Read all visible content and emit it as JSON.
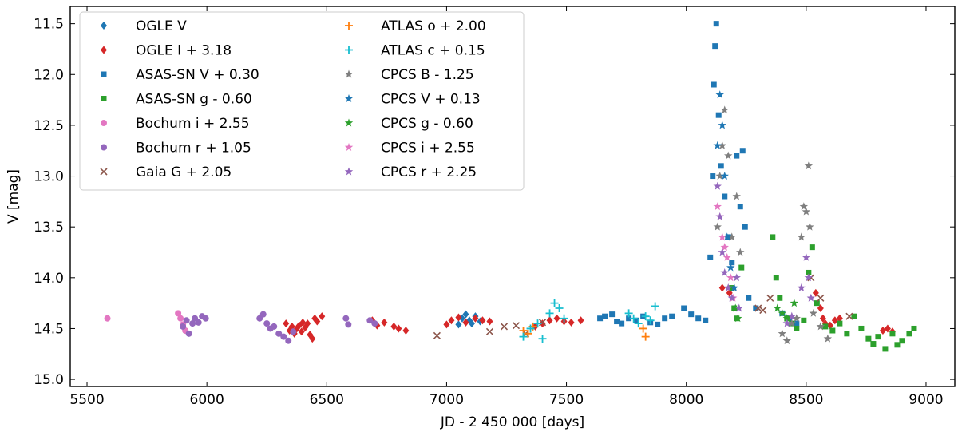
{
  "chart_data": {
    "type": "scatter",
    "xlabel": "JD - 2 450 000 [days]",
    "ylabel": "V [mag]",
    "xlim": [
      5430,
      9120
    ],
    "ylim": [
      15.07,
      11.33
    ],
    "y_inverted": true,
    "xticks": [
      5500,
      6000,
      6500,
      7000,
      7500,
      8000,
      8500,
      9000
    ],
    "yticks": [
      11.5,
      12.0,
      12.5,
      13.0,
      13.5,
      14.0,
      14.5,
      15.0
    ],
    "xtick_labels": [
      "5500",
      "6000",
      "6500",
      "7000",
      "7500",
      "8000",
      "8500",
      "9000"
    ],
    "ytick_labels": [
      "11.5",
      "12.0",
      "12.5",
      "13.0",
      "13.5",
      "14.0",
      "14.5",
      "15.0"
    ],
    "grid": false,
    "legend_position": "top-left",
    "series": [
      {
        "name": "OGLE V",
        "marker": "diamond",
        "color": "#1f77b4",
        "points": [
          [
            7050,
            14.46
          ],
          [
            7065,
            14.4
          ],
          [
            7080,
            14.36
          ],
          [
            7095,
            14.42
          ],
          [
            7105,
            14.45
          ],
          [
            7120,
            14.38
          ],
          [
            7140,
            14.43
          ]
        ]
      },
      {
        "name": "OGLE I + 3.18",
        "marker": "diamond",
        "color": "#d62728",
        "points": [
          [
            6330,
            14.45
          ],
          [
            6345,
            14.52
          ],
          [
            6355,
            14.48
          ],
          [
            6365,
            14.55
          ],
          [
            6375,
            14.5
          ],
          [
            6385,
            14.47
          ],
          [
            6395,
            14.53
          ],
          [
            6400,
            14.44
          ],
          [
            6410,
            14.49
          ],
          [
            6420,
            14.45
          ],
          [
            6430,
            14.56
          ],
          [
            6440,
            14.6
          ],
          [
            6450,
            14.4
          ],
          [
            6460,
            14.43
          ],
          [
            6480,
            14.38
          ],
          [
            6690,
            14.42
          ],
          [
            6710,
            14.47
          ],
          [
            6740,
            14.44
          ],
          [
            6780,
            14.48
          ],
          [
            6800,
            14.5
          ],
          [
            6830,
            14.52
          ],
          [
            7000,
            14.46
          ],
          [
            7020,
            14.42
          ],
          [
            7050,
            14.39
          ],
          [
            7080,
            14.44
          ],
          [
            7120,
            14.4
          ],
          [
            7150,
            14.42
          ],
          [
            7180,
            14.43
          ],
          [
            7370,
            14.48
          ],
          [
            7400,
            14.45
          ],
          [
            7430,
            14.42
          ],
          [
            7460,
            14.4
          ],
          [
            7490,
            14.43
          ],
          [
            7520,
            14.44
          ],
          [
            7560,
            14.42
          ],
          [
            8150,
            14.1
          ],
          [
            8180,
            14.15
          ],
          [
            8540,
            14.15
          ],
          [
            8560,
            14.3
          ],
          [
            8570,
            14.4
          ],
          [
            8580,
            14.45
          ],
          [
            8600,
            14.47
          ],
          [
            8620,
            14.42
          ],
          [
            8640,
            14.4
          ],
          [
            8820,
            14.52
          ],
          [
            8840,
            14.5
          ],
          [
            8860,
            14.53
          ]
        ]
      },
      {
        "name": "ASAS-SN V + 0.30",
        "marker": "square",
        "color": "#1f77b4",
        "points": [
          [
            7640,
            14.4
          ],
          [
            7660,
            14.38
          ],
          [
            7690,
            14.36
          ],
          [
            7710,
            14.43
          ],
          [
            7730,
            14.45
          ],
          [
            7760,
            14.4
          ],
          [
            7790,
            14.42
          ],
          [
            7820,
            14.38
          ],
          [
            7850,
            14.44
          ],
          [
            7880,
            14.46
          ],
          [
            7910,
            14.4
          ],
          [
            7940,
            14.38
          ],
          [
            7990,
            14.3
          ],
          [
            8020,
            14.36
          ],
          [
            8050,
            14.4
          ],
          [
            8080,
            14.42
          ],
          [
            8100,
            13.8
          ],
          [
            8110,
            13.0
          ],
          [
            8115,
            12.1
          ],
          [
            8120,
            11.72
          ],
          [
            8125,
            11.5
          ],
          [
            8135,
            12.4
          ],
          [
            8145,
            12.9
          ],
          [
            8160,
            13.2
          ],
          [
            8175,
            13.6
          ],
          [
            8190,
            13.85
          ],
          [
            8210,
            12.8
          ],
          [
            8225,
            13.3
          ],
          [
            8235,
            12.75
          ],
          [
            8245,
            13.5
          ],
          [
            8260,
            14.2
          ],
          [
            8290,
            14.3
          ],
          [
            8400,
            14.35
          ],
          [
            8430,
            14.4
          ],
          [
            8460,
            14.45
          ]
        ]
      },
      {
        "name": "ASAS-SN g - 0.60",
        "marker": "square",
        "color": "#2ca02c",
        "points": [
          [
            8190,
            14.1
          ],
          [
            8200,
            14.3
          ],
          [
            8210,
            14.4
          ],
          [
            8230,
            13.9
          ],
          [
            8360,
            13.6
          ],
          [
            8375,
            14.0
          ],
          [
            8390,
            14.2
          ],
          [
            8420,
            14.4
          ],
          [
            8440,
            14.45
          ],
          [
            8460,
            14.5
          ],
          [
            8490,
            14.42
          ],
          [
            8510,
            13.95
          ],
          [
            8525,
            13.7
          ],
          [
            8545,
            14.25
          ],
          [
            8580,
            14.48
          ],
          [
            8610,
            14.52
          ],
          [
            8640,
            14.45
          ],
          [
            8670,
            14.55
          ],
          [
            8700,
            14.38
          ],
          [
            8730,
            14.5
          ],
          [
            8760,
            14.6
          ],
          [
            8780,
            14.65
          ],
          [
            8800,
            14.58
          ],
          [
            8830,
            14.7
          ],
          [
            8860,
            14.55
          ],
          [
            8880,
            14.66
          ],
          [
            8900,
            14.62
          ],
          [
            8930,
            14.55
          ],
          [
            8950,
            14.5
          ]
        ]
      },
      {
        "name": "Bochum i + 2.55",
        "marker": "circle",
        "color": "#e377c2",
        "points": [
          [
            5585,
            14.4
          ],
          [
            5880,
            14.35
          ],
          [
            5890,
            14.4
          ],
          [
            5900,
            14.46
          ],
          [
            5910,
            14.52
          ]
        ]
      },
      {
        "name": "Bochum r + 1.05",
        "marker": "circle",
        "color": "#9467bd",
        "points": [
          [
            5900,
            14.48
          ],
          [
            5915,
            14.42
          ],
          [
            5925,
            14.55
          ],
          [
            5940,
            14.45
          ],
          [
            5950,
            14.4
          ],
          [
            5965,
            14.44
          ],
          [
            5980,
            14.38
          ],
          [
            5995,
            14.4
          ],
          [
            6220,
            14.4
          ],
          [
            6235,
            14.36
          ],
          [
            6250,
            14.45
          ],
          [
            6265,
            14.5
          ],
          [
            6280,
            14.48
          ],
          [
            6300,
            14.55
          ],
          [
            6320,
            14.58
          ],
          [
            6340,
            14.62
          ],
          [
            6360,
            14.53
          ],
          [
            6580,
            14.4
          ],
          [
            6590,
            14.46
          ],
          [
            6680,
            14.42
          ],
          [
            6700,
            14.45
          ]
        ]
      },
      {
        "name": "Gaia G + 2.05",
        "marker": "x",
        "color": "#8c564b",
        "points": [
          [
            6960,
            14.57
          ],
          [
            7180,
            14.53
          ],
          [
            7240,
            14.48
          ],
          [
            7290,
            14.47
          ],
          [
            7330,
            14.55
          ],
          [
            7400,
            14.44
          ],
          [
            8300,
            14.3
          ],
          [
            8320,
            14.32
          ],
          [
            8350,
            14.2
          ],
          [
            8520,
            14.0
          ],
          [
            8560,
            14.2
          ],
          [
            8680,
            14.38
          ]
        ]
      },
      {
        "name": "ATLAS o + 2.00",
        "marker": "plus",
        "color": "#ff7f0e",
        "points": [
          [
            7320,
            14.52
          ],
          [
            7340,
            14.55
          ],
          [
            7360,
            14.48
          ],
          [
            7820,
            14.5
          ],
          [
            7830,
            14.58
          ]
        ]
      },
      {
        "name": "ATLAS c + 0.15",
        "marker": "plus",
        "color": "#17becf",
        "points": [
          [
            7320,
            14.58
          ],
          [
            7350,
            14.5
          ],
          [
            7380,
            14.45
          ],
          [
            7400,
            14.6
          ],
          [
            7430,
            14.35
          ],
          [
            7450,
            14.25
          ],
          [
            7470,
            14.3
          ],
          [
            7490,
            14.4
          ],
          [
            7760,
            14.35
          ],
          [
            7780,
            14.4
          ],
          [
            7800,
            14.45
          ],
          [
            7830,
            14.38
          ],
          [
            7850,
            14.42
          ],
          [
            7870,
            14.28
          ]
        ]
      },
      {
        "name": "CPCS B - 1.25",
        "marker": "star",
        "color": "#7f7f7f",
        "points": [
          [
            8130,
            13.5
          ],
          [
            8140,
            13.0
          ],
          [
            8150,
            12.7
          ],
          [
            8160,
            12.35
          ],
          [
            8175,
            12.8
          ],
          [
            8190,
            13.6
          ],
          [
            8210,
            13.2
          ],
          [
            8225,
            13.75
          ],
          [
            8400,
            14.55
          ],
          [
            8420,
            14.62
          ],
          [
            8440,
            14.45
          ],
          [
            8460,
            14.4
          ],
          [
            8480,
            13.6
          ],
          [
            8490,
            13.3
          ],
          [
            8500,
            13.35
          ],
          [
            8510,
            12.9
          ],
          [
            8515,
            13.5
          ],
          [
            8530,
            14.35
          ],
          [
            8560,
            14.48
          ],
          [
            8590,
            14.6
          ]
        ]
      },
      {
        "name": "CPCS V + 0.13",
        "marker": "star",
        "color": "#1f77b4",
        "points": [
          [
            8130,
            12.7
          ],
          [
            8140,
            12.2
          ],
          [
            8150,
            12.5
          ],
          [
            8160,
            13.0
          ],
          [
            8170,
            13.6
          ],
          [
            8185,
            13.9
          ],
          [
            8200,
            14.1
          ]
        ]
      },
      {
        "name": "CPCS g - 0.60",
        "marker": "star",
        "color": "#2ca02c",
        "points": [
          [
            8205,
            14.3
          ],
          [
            8215,
            14.4
          ],
          [
            8380,
            14.3
          ],
          [
            8400,
            14.35
          ],
          [
            8420,
            14.4
          ],
          [
            8450,
            14.25
          ]
        ]
      },
      {
        "name": "CPCS i + 2.55",
        "marker": "star",
        "color": "#e377c2",
        "points": [
          [
            8130,
            13.3
          ],
          [
            8140,
            13.4
          ],
          [
            8150,
            13.6
          ],
          [
            8160,
            13.7
          ],
          [
            8170,
            13.8
          ],
          [
            8185,
            14.0
          ],
          [
            8195,
            14.2
          ]
        ]
      },
      {
        "name": "CPCS r + 2.25",
        "marker": "star",
        "color": "#9467bd",
        "points": [
          [
            8130,
            13.1
          ],
          [
            8140,
            13.4
          ],
          [
            8150,
            13.75
          ],
          [
            8160,
            13.95
          ],
          [
            8175,
            14.1
          ],
          [
            8190,
            14.2
          ],
          [
            8210,
            14.0
          ],
          [
            8220,
            14.3
          ],
          [
            8420,
            14.45
          ],
          [
            8440,
            14.38
          ],
          [
            8480,
            14.1
          ],
          [
            8500,
            13.8
          ],
          [
            8510,
            14.0
          ],
          [
            8520,
            14.2
          ]
        ]
      }
    ]
  }
}
